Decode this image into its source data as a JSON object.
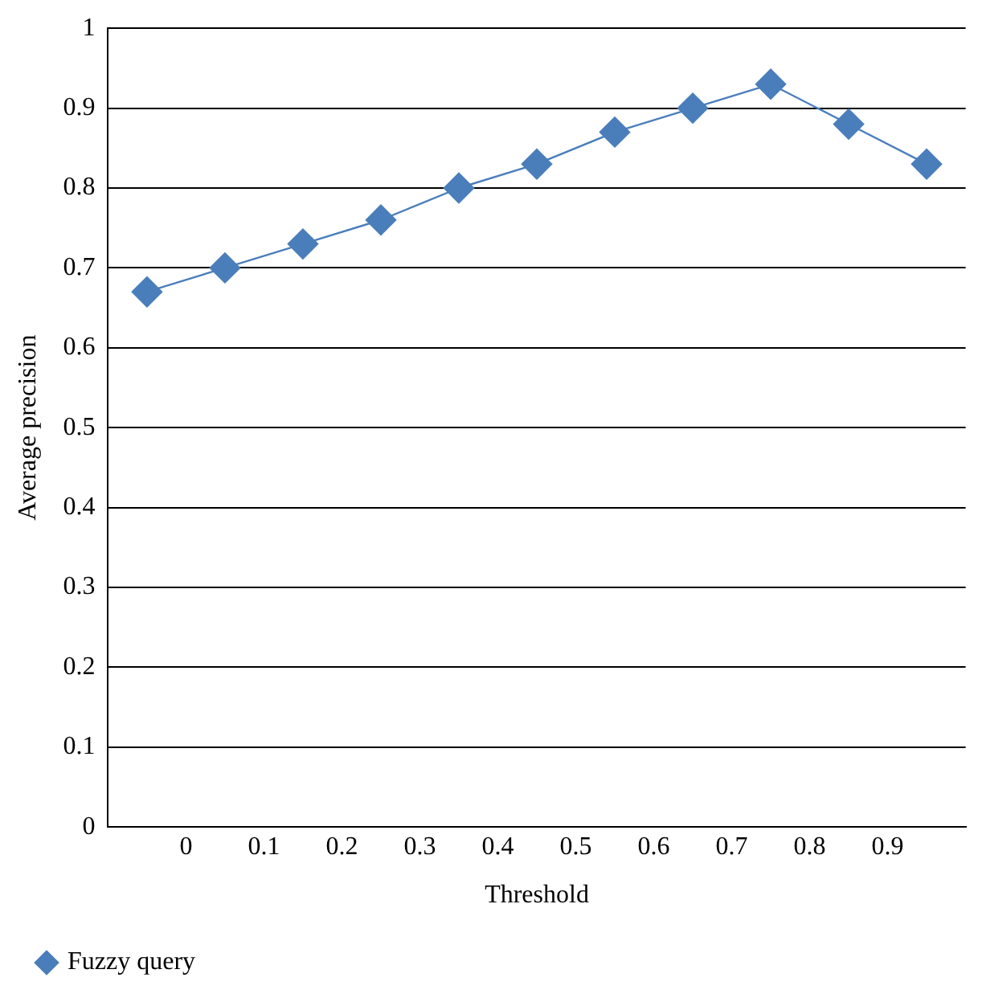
{
  "chart_data": {
    "type": "line",
    "xlabel": "Threshold",
    "ylabel": "Average precision",
    "x": [
      -0.05,
      0.05,
      0.15,
      0.25,
      0.35,
      0.45,
      0.55,
      0.65,
      0.75,
      0.85,
      0.95
    ],
    "series": [
      {
        "name": "Fuzzy query",
        "color": "#4a7ebb",
        "values": [
          0.67,
          0.7,
          0.73,
          0.76,
          0.8,
          0.83,
          0.87,
          0.9,
          0.93,
          0.88,
          0.83
        ]
      }
    ],
    "xlim": [
      -0.1,
      1.0
    ],
    "xticks": [
      0,
      0.1,
      0.2,
      0.3,
      0.4,
      0.5,
      0.6,
      0.7,
      0.8,
      0.9
    ],
    "ylim": [
      0,
      1
    ],
    "yticks": [
      0,
      0.1,
      0.2,
      0.3,
      0.4,
      0.5,
      0.6,
      0.7,
      0.8,
      0.9,
      1
    ],
    "grid": "y",
    "legend": "bottom left",
    "marker": "diamond",
    "line_style": "solid"
  }
}
